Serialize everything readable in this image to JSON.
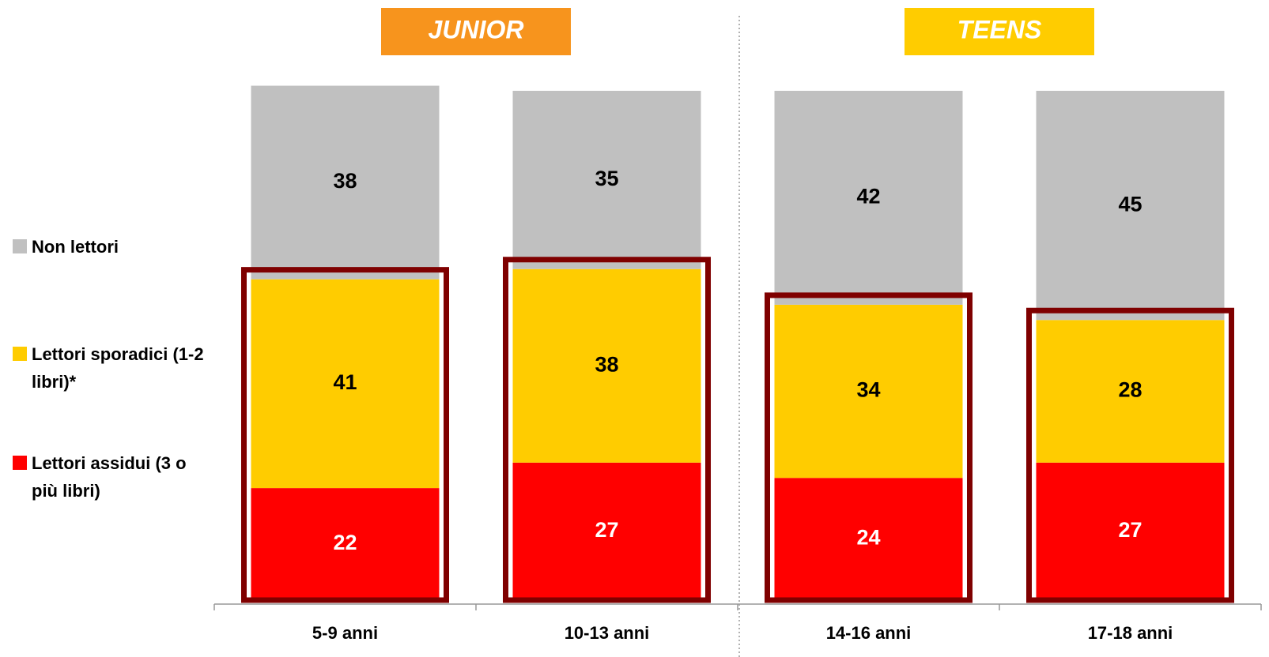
{
  "chart_data": {
    "type": "bar",
    "stacked": true,
    "categories": [
      "5-9 anni",
      "10-13 anni",
      "14-16 anni",
      "17-18 anni"
    ],
    "groups": [
      {
        "label": "JUNIOR",
        "color": "#f7941d"
      },
      {
        "label": "TEENS",
        "color": "#ffcc00"
      }
    ],
    "series": [
      {
        "name": "Lettori assidui (3 o più libri)",
        "color": "#ff0000",
        "values": [
          22,
          27,
          24,
          27
        ]
      },
      {
        "name": "Lettori sporadici (1-2 libri)*",
        "color": "#ffcc00",
        "values": [
          41,
          38,
          34,
          28
        ]
      },
      {
        "name": "Non lettori",
        "color": "#c0c0c0",
        "values": [
          38,
          35,
          42,
          45
        ]
      }
    ],
    "ylim": [
      0,
      100
    ],
    "grid": false
  }
}
